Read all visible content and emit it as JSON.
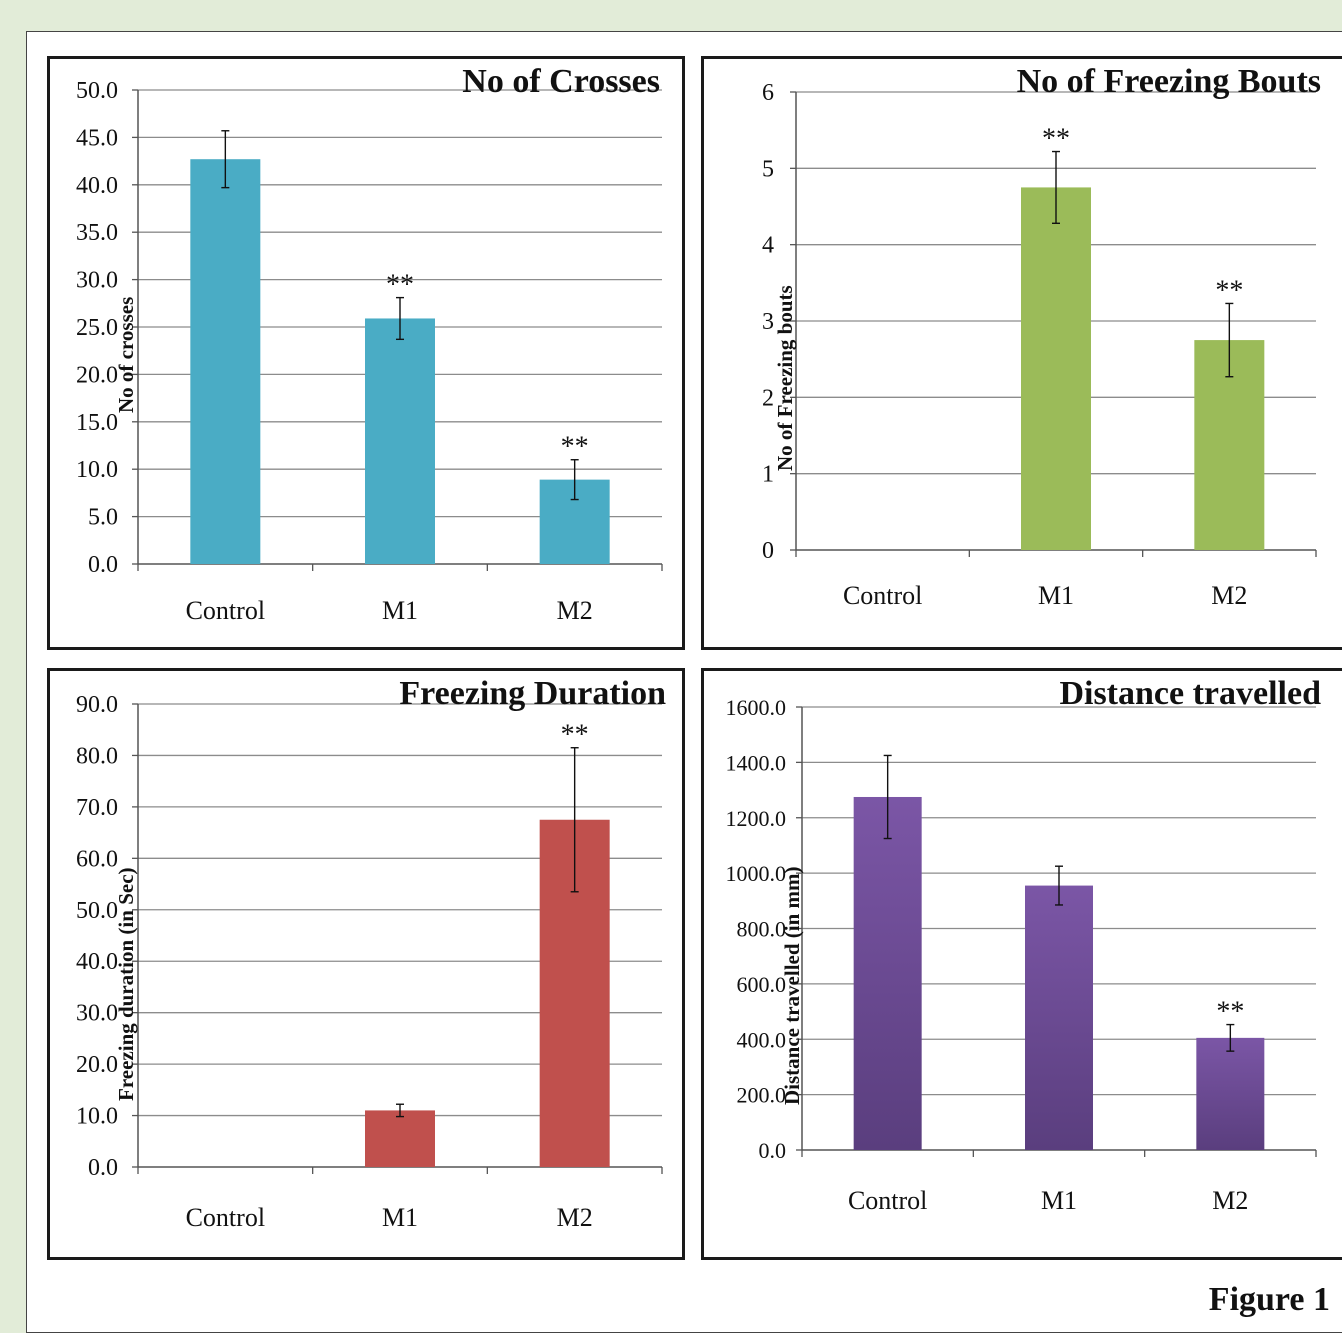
{
  "figure_label": "Figure 1",
  "chart_data": [
    {
      "type": "bar",
      "title": "No of Crosses",
      "ylabel": "No of crosses",
      "xlabel": "",
      "categories": [
        "Control",
        "M1",
        "M2"
      ],
      "values": [
        42.7,
        25.9,
        8.9
      ],
      "errors": [
        3.0,
        2.2,
        2.1
      ],
      "annotations": [
        "",
        "**",
        "**"
      ],
      "ylim": [
        0,
        50
      ],
      "ytick_step": 5,
      "ytick_decimals": 1,
      "color": "#4aacc5",
      "grid": true,
      "legend": "none"
    },
    {
      "type": "bar",
      "title": "No of Freezing Bouts",
      "ylabel": "No of Freezing bouts",
      "xlabel": "",
      "categories": [
        "Control",
        "M1",
        "M2"
      ],
      "values": [
        0,
        4.75,
        2.75
      ],
      "errors": [
        0,
        0.47,
        0.48
      ],
      "annotations": [
        "",
        "**",
        "**"
      ],
      "ylim": [
        0,
        6
      ],
      "ytick_step": 1,
      "ytick_decimals": 0,
      "color": "#9bbb59",
      "grid": true,
      "legend": "none"
    },
    {
      "type": "bar",
      "title": "Freezing Duration",
      "ylabel": "Freezing duration (in Sec)",
      "xlabel": "",
      "categories": [
        "Control",
        "M1",
        "M2"
      ],
      "values": [
        0,
        11.0,
        67.5
      ],
      "errors": [
        0,
        1.2,
        14.0
      ],
      "annotations": [
        "",
        "",
        "**"
      ],
      "ylim": [
        0,
        90
      ],
      "ytick_step": 10,
      "ytick_decimals": 1,
      "color": "#c0504d",
      "grid": true,
      "legend": "none"
    },
    {
      "type": "bar",
      "title": "Distance travelled",
      "ylabel": "Distance travelled (in mm)",
      "xlabel": "",
      "categories": [
        "Control",
        "M1",
        "M2"
      ],
      "values": [
        1275,
        955,
        405
      ],
      "errors": [
        150,
        70,
        48
      ],
      "annotations": [
        "",
        "",
        "**"
      ],
      "ylim": [
        0,
        1600
      ],
      "ytick_step": 200,
      "ytick_decimals": 1,
      "color": "#7b56a6",
      "grid": true,
      "legend": "none"
    }
  ]
}
